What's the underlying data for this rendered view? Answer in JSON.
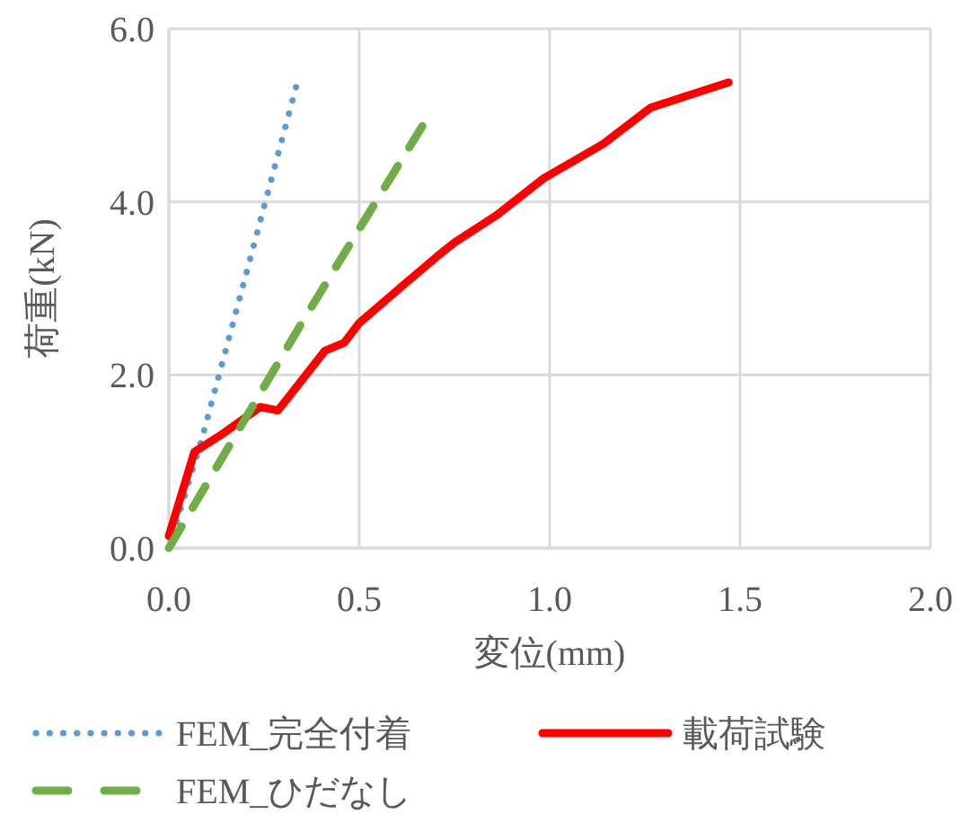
{
  "chart_data": {
    "type": "line",
    "xlabel": "変位(mm)",
    "ylabel": "荷重(kN)",
    "xlim": [
      0,
      2.0
    ],
    "ylim": [
      0,
      6.0
    ],
    "xticks": [
      {
        "value": 0,
        "label": "0.0"
      },
      {
        "value": 0.5,
        "label": "0.5"
      },
      {
        "value": 1.0,
        "label": "1.0"
      },
      {
        "value": 1.5,
        "label": "1.5"
      },
      {
        "value": 2.0,
        "label": "2.0"
      }
    ],
    "yticks": [
      {
        "value": 0,
        "label": "0.0"
      },
      {
        "value": 2.0,
        "label": "2.0"
      },
      {
        "value": 4.0,
        "label": "4.0"
      },
      {
        "value": 6.0,
        "label": "6.0"
      }
    ],
    "grid": true,
    "legend": "bottom",
    "marker": "none",
    "series": [
      {
        "name": "FEM_完全付着",
        "color": "#5b9bd5",
        "line_style": "dotted",
        "x": [
          0,
          0.086,
          0.166,
          0.339
        ],
        "values": [
          0,
          1.25,
          2.56,
          5.41
        ]
      },
      {
        "name": "載荷試験",
        "color": "#ff0000",
        "line_style": "solid",
        "x": [
          0,
          0.067,
          0.138,
          0.24,
          0.287,
          0.41,
          0.46,
          0.5,
          0.545,
          0.608,
          0.702,
          0.75,
          0.859,
          0.984,
          1.141,
          1.266,
          1.47
        ],
        "values": [
          0.14,
          1.11,
          1.31,
          1.63,
          1.59,
          2.28,
          2.37,
          2.6,
          2.77,
          3.01,
          3.36,
          3.53,
          3.84,
          4.27,
          4.67,
          5.09,
          5.38
        ]
      },
      {
        "name": "FEM_ひだなし",
        "color": "#70ad47",
        "line_style": "dashed",
        "x": [
          0,
          0.357,
          0.676
        ],
        "values": [
          0,
          2.66,
          4.95
        ]
      }
    ]
  }
}
